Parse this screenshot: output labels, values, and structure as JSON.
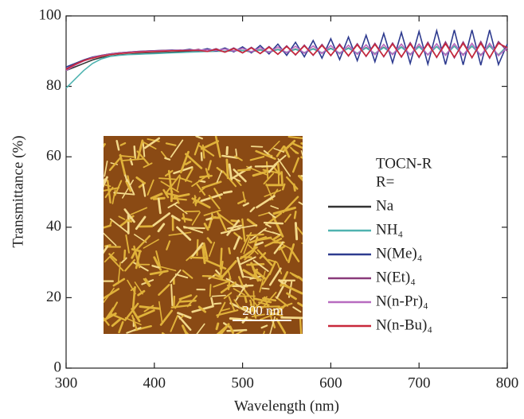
{
  "chart_data": {
    "type": "line",
    "xlabel": "Wavelength (nm)",
    "ylabel": "Transmittance (%)",
    "legend_title": [
      "TOCN-R",
      "R="
    ],
    "annotations": [
      "200 nm"
    ],
    "xlim": [
      300,
      800
    ],
    "xticks": [
      300,
      400,
      500,
      600,
      700,
      800
    ],
    "ylim": [
      0,
      100
    ],
    "yticks": [
      0,
      20,
      40,
      60,
      80,
      100
    ],
    "x": [
      300,
      310,
      320,
      330,
      340,
      350,
      360,
      370,
      380,
      390,
      400,
      410,
      420,
      430,
      440,
      450,
      460,
      470,
      480,
      490,
      500,
      510,
      520,
      530,
      540,
      550,
      560,
      570,
      580,
      590,
      600,
      610,
      620,
      630,
      640,
      650,
      660,
      670,
      680,
      690,
      700,
      710,
      720,
      730,
      740,
      750,
      760,
      770,
      780,
      790,
      800
    ],
    "series": [
      {
        "name": "Na",
        "color": "#333333",
        "values": [
          84.5,
          85.5,
          86.5,
          87.5,
          88.2,
          88.6,
          88.9,
          89.1,
          89.3,
          89.4,
          89.5,
          89.6,
          89.7,
          89.8,
          89.8,
          89.9,
          89.9,
          90,
          90,
          90.1,
          90.2,
          89.8,
          90.4,
          89.7,
          90.5,
          89.6,
          90.6,
          89.5,
          90.7,
          89.5,
          90.8,
          89.4,
          90.9,
          89.3,
          91,
          89.3,
          91.1,
          89.2,
          91.2,
          89.1,
          91.3,
          89,
          91.3,
          89,
          91.4,
          89,
          91.4,
          88.9,
          91.5,
          88.9,
          91.5
        ]
      },
      {
        "name": "NH₄",
        "color": "#4fb3b0",
        "values": [
          79.5,
          82,
          84.5,
          86.5,
          87.8,
          88.5,
          88.8,
          89,
          89.1,
          89.2,
          89.3,
          89.4,
          89.5,
          89.6,
          89.7,
          89.8,
          89.9,
          90,
          90,
          90.1,
          90.2,
          89.9,
          90.3,
          89.8,
          90.4,
          89.7,
          90.5,
          89.6,
          90.6,
          89.5,
          90.7,
          89.5,
          90.8,
          89.4,
          90.9,
          89.3,
          91,
          89.2,
          91.1,
          89.1,
          91.2,
          89,
          91.3,
          89,
          91.4,
          88.9,
          91.5,
          88.8,
          91.6,
          88.8,
          91.6
        ]
      },
      {
        "name": "N(Me)₄",
        "color": "#2e3b8f",
        "values": [
          85.5,
          86.5,
          87.5,
          88.3,
          88.8,
          89.2,
          89.5,
          89.7,
          89.9,
          90,
          90.1,
          90.2,
          90.3,
          90.2,
          90.5,
          90.1,
          90.7,
          90,
          90.9,
          89.8,
          91.2,
          89.5,
          91.6,
          89.2,
          92,
          88.8,
          92.5,
          88.4,
          93,
          88,
          93.5,
          87.6,
          94,
          87.3,
          94.5,
          87,
          95,
          86.7,
          95.3,
          86.5,
          95.6,
          86.3,
          95.8,
          86.2,
          96,
          86.1,
          96,
          86,
          96,
          86.2,
          92
        ]
      },
      {
        "name": "N(Et)₄",
        "color": "#8a3a7a",
        "values": [
          85,
          86.3,
          87.4,
          88.2,
          88.8,
          89.2,
          89.5,
          89.7,
          89.9,
          90,
          90.1,
          90.2,
          90.2,
          90.3,
          90.1,
          90.5,
          89.9,
          90.7,
          89.7,
          90.9,
          89.5,
          91.1,
          89.3,
          91.3,
          89.1,
          91.5,
          88.9,
          91.7,
          88.8,
          91.9,
          88.7,
          92,
          88.6,
          92.1,
          88.5,
          92.2,
          88.4,
          92.3,
          88.3,
          92.4,
          88.2,
          92.5,
          88.2,
          92.6,
          88.1,
          92.6,
          88.1,
          92.7,
          88,
          92.7,
          90
        ]
      },
      {
        "name": "N(n-Pr)₄",
        "color": "#b86bc0",
        "values": [
          84.5,
          86,
          87.2,
          88.1,
          88.7,
          89.1,
          89.4,
          89.6,
          89.8,
          89.9,
          90,
          90.1,
          90.2,
          90.2,
          90.3,
          90.3,
          90.4,
          90.2,
          90.6,
          90,
          90.8,
          89.8,
          91,
          89.6,
          91.2,
          89.5,
          91.4,
          89.4,
          91.5,
          89.3,
          91.6,
          89.2,
          91.7,
          89.1,
          91.8,
          89,
          91.9,
          89,
          92,
          88.9,
          92,
          88.9,
          92.1,
          88.8,
          92.1,
          88.8,
          92.2,
          88.7,
          92.2,
          88.7,
          91
        ]
      },
      {
        "name": "N(n-Bu)₄",
        "color": "#c8283a",
        "values": [
          84.8,
          86.2,
          87.3,
          88,
          88.6,
          89,
          89.3,
          89.5,
          89.7,
          89.8,
          89.9,
          90,
          90.1,
          90.1,
          90.2,
          90.2,
          89.9,
          90.5,
          89.7,
          90.7,
          89.5,
          90.9,
          89.3,
          91.1,
          89.1,
          91.3,
          89,
          91.5,
          88.9,
          91.6,
          88.8,
          91.7,
          88.7,
          91.8,
          88.6,
          91.9,
          88.5,
          92,
          88.4,
          92,
          88.4,
          92.1,
          88.3,
          92.1,
          88.3,
          92.2,
          88.2,
          92.2,
          88.2,
          92.2,
          91
        ]
      }
    ]
  }
}
